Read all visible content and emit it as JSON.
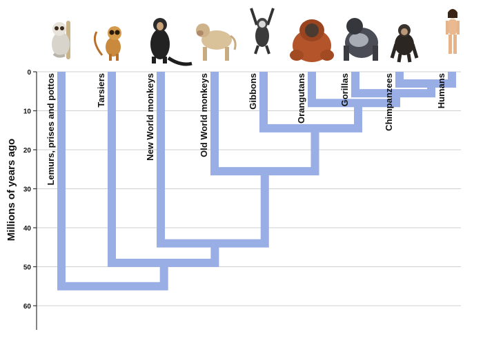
{
  "figure": {
    "y_axis_title": "Millions of years ago",
    "y_ticks": [
      0,
      10,
      20,
      30,
      40,
      50,
      60
    ],
    "branch_color": "#9aaee6",
    "grid_color": "#cfcfcf"
  },
  "taxa": [
    {
      "id": "lemurs",
      "label": "Lemurs, prises and pottos",
      "icon": "loris-icon"
    },
    {
      "id": "tarsiers",
      "label": "Tarsiers",
      "icon": "tarsier-icon"
    },
    {
      "id": "nwm",
      "label": "New World monkeys",
      "icon": "spider-monkey-icon"
    },
    {
      "id": "owm",
      "label": "Old World monkeys",
      "icon": "baboon-icon"
    },
    {
      "id": "gibbons",
      "label": "Gibbons",
      "icon": "gibbon-icon"
    },
    {
      "id": "orangutans",
      "label": "Orangutans",
      "icon": "orangutan-icon"
    },
    {
      "id": "gorillas",
      "label": "Gorillas",
      "icon": "gorilla-icon"
    },
    {
      "id": "chimps",
      "label": "Chimpanzees",
      "icon": "chimpanzee-icon"
    },
    {
      "id": "humans",
      "label": "Humans",
      "icon": "human-icon"
    }
  ],
  "divergences_mya": {
    "humans_chimpanzees": 3,
    "gorillas_humans_chimpanzees": 5.5,
    "orangutans_african_apes": 8,
    "gibbons_great_apes": 14.5,
    "old_world_monkeys_apes": 25.5,
    "new_world_monkeys_old_world": 44,
    "tarsiers_anthropoids": 49,
    "lemurs_haplorhines": 55
  }
}
